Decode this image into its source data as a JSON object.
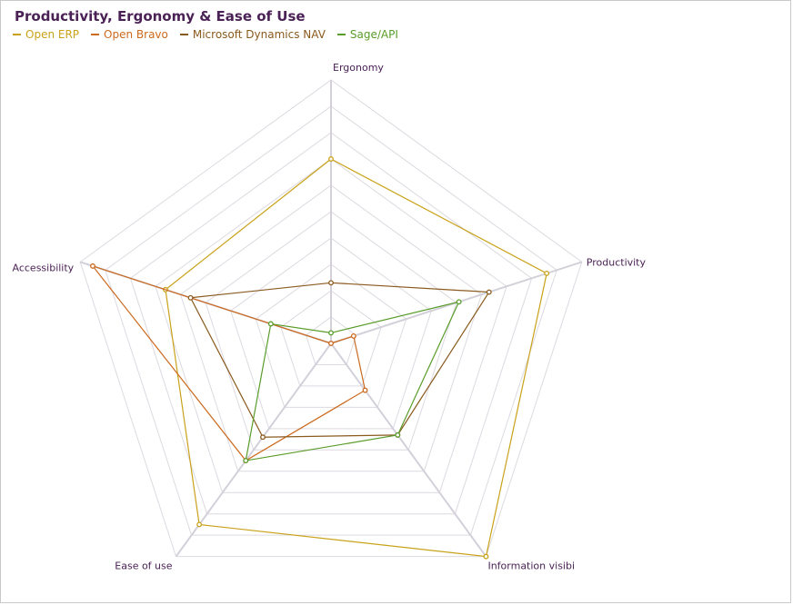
{
  "chart_data": {
    "type": "radar",
    "title": "Productivity, Ergonomy & Ease of Use",
    "axes": [
      "Ergonomy",
      "Productivity",
      "Information visibi",
      "Ease of use",
      "Accessibility"
    ],
    "range": [
      0,
      10
    ],
    "grid_levels": 10,
    "grid": true,
    "legend_position": "top-left",
    "series": [
      {
        "name": "Open ERP",
        "color": "#c9a21a",
        "values": [
          7,
          8.6,
          10,
          8.5,
          6.6
        ]
      },
      {
        "name": "Open Bravo",
        "color": "#cc6a1e",
        "values": [
          0,
          0.9,
          2.2,
          5.5,
          9.5
        ]
      },
      {
        "name": "Microsoft Dynamics NAV",
        "color": "#8a5a1e",
        "values": [
          2.3,
          6.3,
          4.3,
          4.4,
          5.6
        ]
      },
      {
        "name": "Sage/API",
        "color": "#5a9c2a",
        "values": [
          0.4,
          5.1,
          4.3,
          5.5,
          2.4
        ]
      }
    ]
  }
}
